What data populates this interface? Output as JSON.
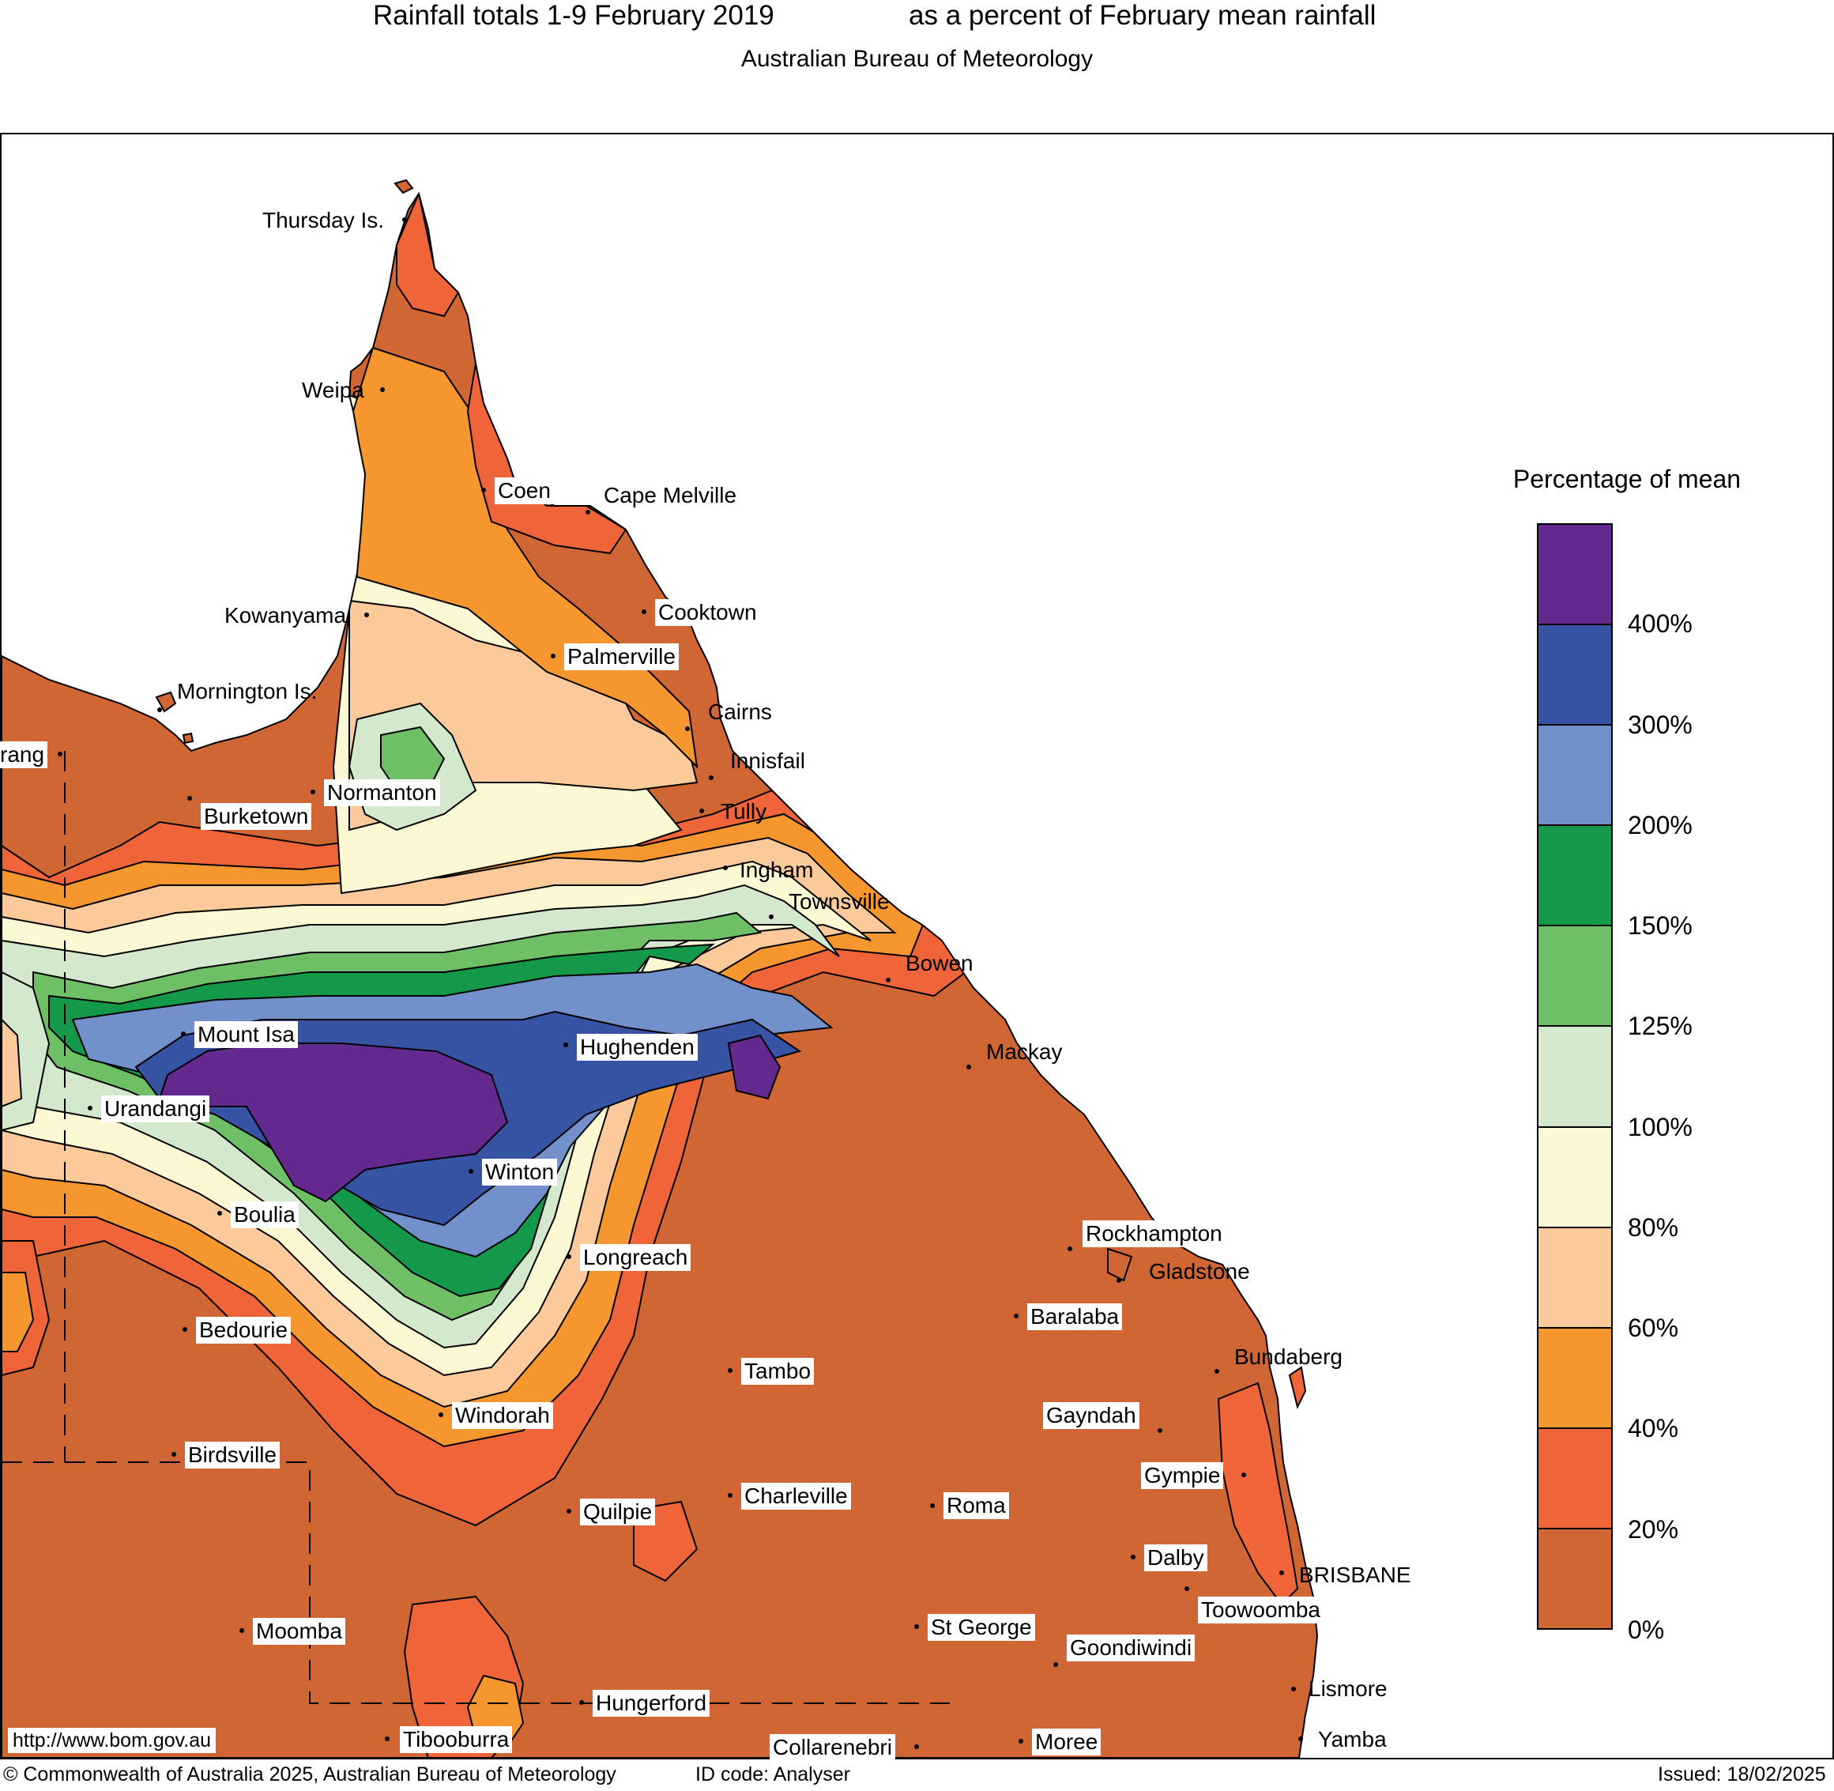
{
  "header": {
    "title_left": "Rainfall totals 1-9 February 2019",
    "title_right": "as a percent of February mean rainfall",
    "subtitle": "Australian Bureau of Meteorology"
  },
  "legend": {
    "title": "Percentage of mean",
    "bands": [
      {
        "range": "above 400%",
        "color": "#63298f"
      },
      {
        "range": "300-400%",
        "color": "#3653a4"
      },
      {
        "range": "200-300%",
        "color": "#7291cb"
      },
      {
        "range": "150-200%",
        "color": "#14994a"
      },
      {
        "range": "125-150%",
        "color": "#6ebf66"
      },
      {
        "range": "100-125%",
        "color": "#d3e8cc"
      },
      {
        "range": "80-100%",
        "color": "#fbf8d3"
      },
      {
        "range": "60-80%",
        "color": "#fbc99a"
      },
      {
        "range": "40-60%",
        "color": "#f5962f"
      },
      {
        "range": "20-40%",
        "color": "#f0643a"
      },
      {
        "range": "0-20%",
        "color": "#d06633"
      }
    ],
    "labels": [
      "400%",
      "300%",
      "200%",
      "150%",
      "125%",
      "100%",
      "80%",
      "60%",
      "40%",
      "20%",
      "0%"
    ]
  },
  "map": {
    "places": [
      {
        "name": "Thursday Is.",
        "boxed": false
      },
      {
        "name": "Weipa",
        "boxed": false
      },
      {
        "name": "Coen",
        "boxed": true
      },
      {
        "name": "Cape Melville",
        "boxed": false
      },
      {
        "name": "Cooktown",
        "boxed": true
      },
      {
        "name": "Kowanyama",
        "boxed": false
      },
      {
        "name": "Palmerville",
        "boxed": true
      },
      {
        "name": "Mornington Is.",
        "boxed": false
      },
      {
        "name": "Cairns",
        "boxed": false
      },
      {
        "name": "rang",
        "boxed": true
      },
      {
        "name": "Innisfail",
        "boxed": false
      },
      {
        "name": "Normanton",
        "boxed": true
      },
      {
        "name": "Burketown",
        "boxed": true
      },
      {
        "name": "Tully",
        "boxed": false
      },
      {
        "name": "Ingham",
        "boxed": false
      },
      {
        "name": "Townsville",
        "boxed": false
      },
      {
        "name": "Bowen",
        "boxed": false
      },
      {
        "name": "Mount Isa",
        "boxed": true
      },
      {
        "name": "Hughenden",
        "boxed": true
      },
      {
        "name": "Mackay",
        "boxed": false
      },
      {
        "name": "Urandangi",
        "boxed": true
      },
      {
        "name": "Winton",
        "boxed": true
      },
      {
        "name": "Boulia",
        "boxed": true
      },
      {
        "name": "Rockhampton",
        "boxed": true
      },
      {
        "name": "Longreach",
        "boxed": true
      },
      {
        "name": "Gladstone",
        "boxed": false
      },
      {
        "name": "Bedourie",
        "boxed": true
      },
      {
        "name": "Baralaba",
        "boxed": true
      },
      {
        "name": "Bundaberg",
        "boxed": false
      },
      {
        "name": "Tambo",
        "boxed": true
      },
      {
        "name": "Windorah",
        "boxed": true
      },
      {
        "name": "Gayndah",
        "boxed": true
      },
      {
        "name": "Birdsville",
        "boxed": true
      },
      {
        "name": "Gympie",
        "boxed": true
      },
      {
        "name": "Charleville",
        "boxed": true
      },
      {
        "name": "Roma",
        "boxed": true
      },
      {
        "name": "Quilpie",
        "boxed": true
      },
      {
        "name": "Dalby",
        "boxed": true
      },
      {
        "name": "BRISBANE",
        "boxed": false
      },
      {
        "name": "Toowoomba",
        "boxed": true
      },
      {
        "name": "Moomba",
        "boxed": true
      },
      {
        "name": "St George",
        "boxed": true
      },
      {
        "name": "Goondiwindi",
        "boxed": true
      },
      {
        "name": "Lismore",
        "boxed": false
      },
      {
        "name": "Hungerford",
        "boxed": true
      },
      {
        "name": "Tibooburra",
        "boxed": true
      },
      {
        "name": "Yamba",
        "boxed": false
      },
      {
        "name": "Moree",
        "boxed": true
      },
      {
        "name": "Collarenebri",
        "boxed": true
      }
    ],
    "url": "http://www.bom.gov.au"
  },
  "footer": {
    "copyright": "Commonwealth of Australia 2025, Australian Bureau of Meteorology",
    "id_code": "ID code: Analyser",
    "issued": "Issued: 18/02/2025"
  }
}
